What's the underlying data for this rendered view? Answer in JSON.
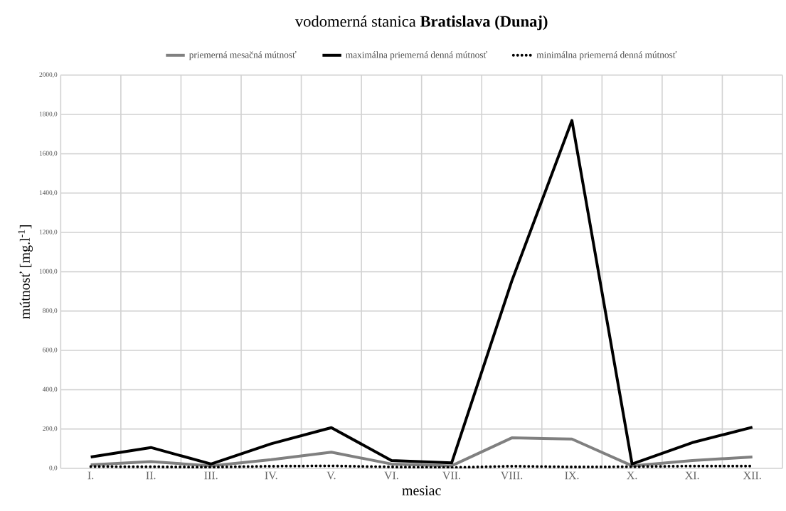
{
  "chart_data": {
    "type": "line",
    "title": "vodomerná stanica **Bratislava (Dunaj)**",
    "xlabel": "mesiac",
    "ylabel": "mútnosť [mg.l$^{-1}$]",
    "categories": [
      "I.",
      "II.",
      "III.",
      "IV.",
      "V.",
      "VI.",
      "VII.",
      "VIII.",
      "IX.",
      "X.",
      "XI.",
      "XII."
    ],
    "series": [
      {
        "name": "priemerná mesačná mútnosť",
        "color": "#808080",
        "line_style": "solid",
        "values": [
          18,
          34,
          13,
          44,
          82,
          22,
          13,
          155,
          149,
          13,
          40,
          58
        ]
      },
      {
        "name": "maximálna priemerná denná mútnosť",
        "color": "#000000",
        "line_style": "solid",
        "values": [
          58,
          106,
          22,
          125,
          207,
          40,
          28,
          953,
          1769,
          22,
          131,
          209
        ]
      },
      {
        "name": "minimálna priemerná denná mútnosť",
        "color": "#000000",
        "line_style": "dotted",
        "values": [
          9,
          8,
          6,
          11,
          13,
          7,
          4,
          11,
          7,
          8,
          12,
          12
        ]
      }
    ],
    "ylim": [
      0,
      2000
    ],
    "yticks": [
      {
        "value": 0,
        "label": "0,0"
      },
      {
        "value": 200,
        "label": "200,0"
      },
      {
        "value": 400,
        "label": "400,0"
      },
      {
        "value": 600,
        "label": "600,0"
      },
      {
        "value": 800,
        "label": "800,0"
      },
      {
        "value": 1000,
        "label": "1000,0"
      },
      {
        "value": 1200,
        "label": "1200,0"
      },
      {
        "value": 1400,
        "label": "1400,0"
      },
      {
        "value": 1600,
        "label": "1600,0"
      },
      {
        "value": 1800,
        "label": "1800,0"
      },
      {
        "value": 2000,
        "label": "2000,0"
      }
    ],
    "grid": true,
    "legend": "top",
    "marker": "none"
  }
}
